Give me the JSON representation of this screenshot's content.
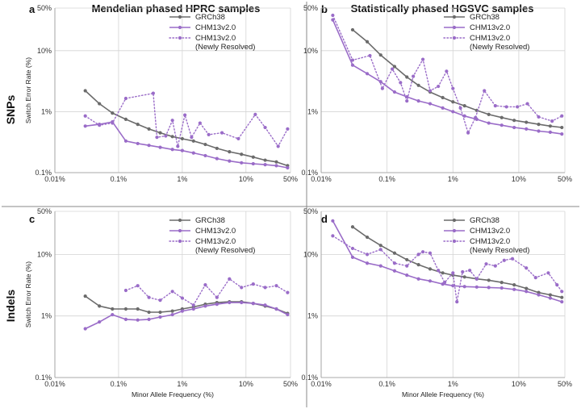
{
  "figure": {
    "col_titles": [
      "Mendelian phased HPRC samples",
      "Statistically phased HGSVC samples"
    ],
    "row_labels": [
      "SNPs",
      "Indels"
    ],
    "colors": {
      "grch38": "#6b6b6b",
      "chm13": "#9a6cc8",
      "divider": "#888888",
      "grid": "#d4d4d4"
    }
  },
  "chart_data": [
    {
      "type": "line",
      "panel_label": "a",
      "xlabel": "",
      "ylabel": "Switch Error Rate (%)",
      "xscale": "log",
      "yscale": "log",
      "xlim": [
        0.01,
        50
      ],
      "ylim": [
        0.1,
        50
      ],
      "xticks": [
        "0.01%",
        "0.1%",
        "1%",
        "10%",
        "50%"
      ],
      "yticks": [
        "0.1%",
        "1%",
        "10%",
        "50%"
      ],
      "legend": [
        "GRCh38",
        "CHM13v2.0",
        "CHM13v2.0\n(Newly Resolved)"
      ],
      "legend_position": "top-right",
      "series": [
        {
          "name": "GRCh38",
          "style": "solid",
          "x": [
            0.03,
            0.05,
            0.08,
            0.13,
            0.2,
            0.3,
            0.45,
            0.7,
            1.0,
            1.5,
            2.3,
            3.5,
            5.5,
            8.5,
            13,
            20,
            30,
            45
          ],
          "y": [
            2.2,
            1.35,
            0.95,
            0.75,
            0.62,
            0.52,
            0.45,
            0.39,
            0.36,
            0.33,
            0.29,
            0.25,
            0.22,
            0.2,
            0.18,
            0.16,
            0.15,
            0.13
          ]
        },
        {
          "name": "CHM13v2.0",
          "style": "solid",
          "x": [
            0.03,
            0.05,
            0.08,
            0.13,
            0.2,
            0.3,
            0.45,
            0.7,
            1.0,
            1.5,
            2.3,
            3.5,
            5.5,
            8.5,
            13,
            20,
            30,
            45
          ],
          "y": [
            0.58,
            0.62,
            0.68,
            0.33,
            0.3,
            0.28,
            0.26,
            0.24,
            0.23,
            0.21,
            0.19,
            0.17,
            0.155,
            0.145,
            0.14,
            0.135,
            0.13,
            0.12
          ]
        },
        {
          "name": "CHM13v2.0 (Newly Resolved)",
          "style": "dotted",
          "x": [
            0.03,
            0.05,
            0.08,
            0.13,
            0.35,
            0.4,
            0.55,
            0.7,
            0.85,
            1.1,
            1.4,
            1.9,
            2.6,
            4.2,
            7.6,
            14,
            20,
            32,
            45
          ],
          "y": [
            0.85,
            0.6,
            0.65,
            1.65,
            2.0,
            0.38,
            0.4,
            0.72,
            0.27,
            0.88,
            0.38,
            0.65,
            0.42,
            0.45,
            0.36,
            0.9,
            0.55,
            0.27,
            0.52
          ]
        }
      ]
    },
    {
      "type": "line",
      "panel_label": "b",
      "xlabel": "",
      "ylabel": "",
      "xscale": "log",
      "yscale": "log",
      "xlim": [
        0.01,
        50
      ],
      "ylim": [
        0.1,
        50
      ],
      "xticks": [
        "0.01%",
        "0.1%",
        "1%",
        "10%",
        "50%"
      ],
      "yticks": [
        "0.1%",
        "1%",
        "10%",
        "50%"
      ],
      "legend": [
        "GRCh38",
        "CHM13v2.0",
        "CHM13v2.0\n(Newly Resolved)"
      ],
      "legend_position": "top-right",
      "series": [
        {
          "name": "GRCh38",
          "style": "solid",
          "x": [
            0.03,
            0.05,
            0.08,
            0.13,
            0.2,
            0.3,
            0.45,
            0.7,
            1.0,
            1.5,
            2.3,
            3.5,
            5.5,
            8.5,
            13,
            20,
            30,
            45
          ],
          "y": [
            22,
            14,
            8.5,
            5.5,
            3.7,
            2.7,
            2.1,
            1.7,
            1.45,
            1.25,
            1.05,
            0.9,
            0.8,
            0.72,
            0.67,
            0.62,
            0.58,
            0.55
          ]
        },
        {
          "name": "CHM13v2.0",
          "style": "solid",
          "x": [
            0.015,
            0.03,
            0.05,
            0.08,
            0.13,
            0.2,
            0.3,
            0.45,
            0.7,
            1.0,
            1.5,
            2.3,
            3.5,
            5.5,
            8.5,
            13,
            20,
            30,
            45
          ],
          "y": [
            32,
            5.8,
            4.2,
            3.1,
            2.1,
            1.75,
            1.5,
            1.35,
            1.15,
            1.0,
            0.85,
            0.75,
            0.65,
            0.6,
            0.55,
            0.52,
            0.48,
            0.46,
            0.43
          ]
        },
        {
          "name": "CHM13v2.0 (Newly Resolved)",
          "style": "dotted",
          "x": [
            0.015,
            0.03,
            0.055,
            0.085,
            0.12,
            0.16,
            0.2,
            0.25,
            0.35,
            0.45,
            0.6,
            0.8,
            1.0,
            1.3,
            1.7,
            2.2,
            3.0,
            4.4,
            6.5,
            9.5,
            13.5,
            20,
            32,
            45
          ],
          "y": [
            38,
            7.0,
            8.3,
            2.4,
            5.0,
            3.0,
            1.5,
            3.8,
            7.2,
            2.2,
            2.6,
            4.6,
            2.4,
            1.15,
            0.45,
            0.8,
            2.2,
            1.25,
            1.2,
            1.2,
            1.35,
            0.82,
            0.7,
            0.85
          ]
        }
      ]
    },
    {
      "type": "line",
      "panel_label": "c",
      "xlabel": "Minor Allele Frequency (%)",
      "ylabel": "Switch Error Rate (%)",
      "xscale": "log",
      "yscale": "log",
      "xlim": [
        0.01,
        50
      ],
      "ylim": [
        0.1,
        50
      ],
      "xticks": [
        "0.01%",
        "0.1%",
        "1%",
        "10%",
        "50%"
      ],
      "yticks": [
        "0.1%",
        "1%",
        "10%",
        "50%"
      ],
      "legend": [
        "GRCh38",
        "CHM13v2.0",
        "CHM13v2.0\n(Newly Resolved)"
      ],
      "legend_position": "top-right",
      "series": [
        {
          "name": "GRCh38",
          "style": "solid",
          "x": [
            0.03,
            0.05,
            0.08,
            0.13,
            0.2,
            0.3,
            0.45,
            0.7,
            1.0,
            1.5,
            2.3,
            3.5,
            5.5,
            8.5,
            13,
            20,
            30,
            45
          ],
          "y": [
            2.1,
            1.45,
            1.3,
            1.3,
            1.3,
            1.15,
            1.15,
            1.2,
            1.3,
            1.4,
            1.55,
            1.65,
            1.7,
            1.7,
            1.6,
            1.45,
            1.3,
            1.1
          ]
        },
        {
          "name": "CHM13v2.0",
          "style": "solid",
          "x": [
            0.03,
            0.05,
            0.08,
            0.13,
            0.2,
            0.3,
            0.45,
            0.7,
            1.0,
            1.5,
            2.3,
            3.5,
            5.5,
            8.5,
            13,
            20,
            30,
            45
          ],
          "y": [
            0.62,
            0.8,
            1.05,
            0.88,
            0.86,
            0.88,
            0.96,
            1.05,
            1.2,
            1.3,
            1.45,
            1.55,
            1.65,
            1.65,
            1.6,
            1.5,
            1.3,
            1.05
          ]
        },
        {
          "name": "CHM13v2.0 (Newly Resolved)",
          "style": "dotted",
          "x": [
            0.13,
            0.2,
            0.3,
            0.45,
            0.7,
            1.0,
            1.5,
            2.3,
            3.5,
            5.5,
            8.5,
            13,
            20,
            30,
            45
          ],
          "y": [
            2.6,
            3.1,
            2.0,
            1.8,
            2.5,
            1.95,
            1.5,
            3.2,
            2.0,
            4.0,
            2.9,
            3.3,
            2.9,
            3.1,
            2.4
          ]
        }
      ]
    },
    {
      "type": "line",
      "panel_label": "d",
      "xlabel": "Minor Allele Frequency (%)",
      "ylabel": "",
      "xscale": "log",
      "yscale": "log",
      "xlim": [
        0.01,
        50
      ],
      "ylim": [
        0.1,
        50
      ],
      "xticks": [
        "0.01%",
        "0.1%",
        "1%",
        "10%",
        "50%"
      ],
      "yticks": [
        "0.1%",
        "1%",
        "10%",
        "50%"
      ],
      "legend": [
        "GRCh38",
        "CHM13v2.0",
        "CHM13v2.0\n(Newly Resolved)"
      ],
      "legend_position": "top-right",
      "series": [
        {
          "name": "GRCh38",
          "style": "solid",
          "x": [
            0.03,
            0.05,
            0.08,
            0.13,
            0.2,
            0.3,
            0.45,
            0.7,
            1.0,
            1.5,
            2.3,
            3.5,
            5.5,
            8.5,
            13,
            20,
            30,
            45
          ],
          "y": [
            28,
            19,
            14,
            10.5,
            8.2,
            6.8,
            5.8,
            5.0,
            4.6,
            4.3,
            4.0,
            3.8,
            3.5,
            3.2,
            2.8,
            2.4,
            2.2,
            2.0
          ]
        },
        {
          "name": "CHM13v2.0",
          "style": "solid",
          "x": [
            0.015,
            0.03,
            0.05,
            0.08,
            0.13,
            0.2,
            0.3,
            0.45,
            0.7,
            1.0,
            1.5,
            2.3,
            3.5,
            5.5,
            8.5,
            13,
            20,
            30,
            45
          ],
          "y": [
            35,
            9.0,
            7.2,
            6.5,
            5.4,
            4.6,
            4.0,
            3.7,
            3.3,
            3.1,
            3.0,
            2.95,
            2.9,
            2.85,
            2.7,
            2.5,
            2.2,
            1.95,
            1.7
          ]
        },
        {
          "name": "CHM13v2.0 (Newly Resolved)",
          "style": "dotted",
          "x": [
            0.015,
            0.03,
            0.05,
            0.08,
            0.13,
            0.2,
            0.3,
            0.35,
            0.45,
            0.6,
            0.75,
            1.0,
            1.15,
            1.4,
            1.8,
            2.3,
            3.2,
            4.4,
            6,
            8,
            13,
            18,
            28,
            38,
            45
          ],
          "y": [
            20,
            12.5,
            10.0,
            12.0,
            7.2,
            6.5,
            10.0,
            11.0,
            10.5,
            5.5,
            3.5,
            5.0,
            1.7,
            5.2,
            5.5,
            4.0,
            7.0,
            6.5,
            8.0,
            8.5,
            6.0,
            4.2,
            5.0,
            3.2,
            2.5
          ]
        }
      ]
    }
  ]
}
